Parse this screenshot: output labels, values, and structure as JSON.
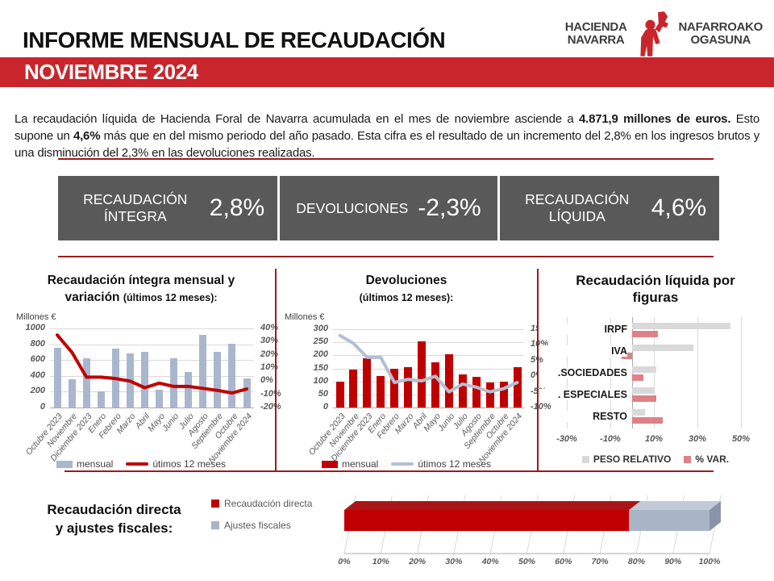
{
  "header": {
    "title": "INFORME MENSUAL DE RECAUDACIÓN",
    "banner": "NOVIEMBRE 2024",
    "logo": {
      "left_line1": "HACIENDA",
      "left_line2": "NAVARRA",
      "right_line1": "NAFARROAKO",
      "right_line2": "OGASUNA"
    }
  },
  "intro": {
    "part1": "La recaudación líquida de Hacienda Foral de Navarra acumulada en el mes de noviembre asciende a ",
    "bold1": "4.871,9 millones de euros.",
    "part2": " Esto supone un ",
    "bold2": "4,6%",
    "part3": " más que en del mismo periodo del año pasado. Esta cifra es el resultado de un incremento del 2,8% en los ingresos brutos y una disminución del 2,3% en las devoluciones realizadas."
  },
  "kpis": [
    {
      "label": "RECAUDACIÓN ÍNTEGRA",
      "value": "2,8%"
    },
    {
      "label": "DEVOLUCIONES",
      "value": "-2,3%"
    },
    {
      "label": "RECAUDACIÓN LÍQUIDA",
      "value": "4,6%"
    }
  ],
  "colors": {
    "banner_red": "#C9252C",
    "rule_red": "#9B1B1E",
    "kpi_gray": "#595959",
    "bar_blue": "#A9B7CE",
    "line_red": "#C00000",
    "bar_red": "#C00000",
    "line_gray": "#B3BFD1",
    "peso_gray": "#D9D9D9",
    "var_red": "#DE8287",
    "axis_text": "#595959",
    "grid": "#D9D9D9"
  },
  "chart_data": [
    {
      "type": "bar",
      "title_line1": "Recaudación íntegra mensual y",
      "title_line2": "variación",
      "title_sub": "(últimos 12 meses):",
      "units_label": "Millones €",
      "categories": [
        "Octubre 2023",
        "Noviembre",
        "Diciembre 2023",
        "Enero",
        "Febrero",
        "Marzo",
        "Abril",
        "Mayo",
        "Junio",
        "Julio",
        "Agosto",
        "Septiembre",
        "Octubre",
        "Noviembre 2024"
      ],
      "bar_series": {
        "name": "mensual",
        "values": [
          755,
          360,
          620,
          205,
          745,
          685,
          700,
          220,
          625,
          450,
          915,
          700,
          810,
          370
        ]
      },
      "line_series": {
        "name": "útimos 12 meses",
        "values": [
          35,
          22,
          3,
          3,
          2,
          0,
          -5,
          -1.5,
          -4,
          -4,
          -5.5,
          -7,
          -9,
          -6
        ]
      },
      "left_axis": {
        "min": 0,
        "max": 1000,
        "ticks": [
          "1000",
          "800",
          "600",
          "400",
          "200",
          "0"
        ]
      },
      "right_axis": {
        "min": -20,
        "max": 40,
        "ticks": [
          "40%",
          "30%",
          "20%",
          "10%",
          "0%",
          "-10%",
          "-20%"
        ]
      }
    },
    {
      "type": "bar",
      "title_line1": "Devoluciones",
      "title_line2": "",
      "title_sub": "(últimos 12 meses):",
      "units_label": "Millones €",
      "categories": [
        "Octubre 2023",
        "Noviembre",
        "Diciembre 2023",
        "Enero",
        "Febrero",
        "Marzo",
        "Abril",
        "Mayo",
        "Junio",
        "Julio",
        "Agosto",
        "Septiembre",
        "Octubre",
        "Noviembre 2024"
      ],
      "bar_series": {
        "name": "mensual",
        "values": [
          100,
          145,
          190,
          120,
          148,
          155,
          253,
          172,
          205,
          127,
          119,
          97,
          99,
          155
        ]
      },
      "line_series": {
        "name": "útimos 12 meses",
        "values": [
          13,
          10.5,
          6,
          6,
          -2,
          -1,
          -1.5,
          0,
          -5,
          -2.5,
          -3.5,
          -5,
          -4,
          -2
        ]
      },
      "left_axis": {
        "min": 0,
        "max": 300,
        "ticks": [
          "300",
          "250",
          "200",
          "150",
          "100",
          "50",
          "0"
        ]
      },
      "right_axis": {
        "min": -10,
        "max": 15,
        "ticks": [
          "15%",
          "10%",
          "5%",
          "0%",
          "-5%",
          "-10%"
        ]
      }
    },
    {
      "type": "bar",
      "title_line1": "Recaudación líquida por",
      "title_line2": "figuras",
      "categories": [
        "IRPF",
        "IVA",
        ".SOCIEDADES",
        ". ESPECIALES",
        "RESTO"
      ],
      "series": [
        {
          "name": "PESO RELATIVO",
          "values": [
            45,
            28,
            11,
            10,
            6
          ]
        },
        {
          "name": "% VAR.",
          "values": [
            12,
            -5,
            5,
            11,
            14
          ]
        }
      ],
      "x_ticks": [
        "-30%",
        "-10%",
        "10%",
        "30%",
        "50%"
      ],
      "x_tick_values": [
        -30,
        -10,
        10,
        30,
        50
      ]
    },
    {
      "type": "bar",
      "section_title_line1": "Recaudación  directa",
      "section_title_line2": "y ajustes  fiscales:",
      "series": [
        {
          "name": "Recaudación directa",
          "value": 78
        },
        {
          "name": "Ajustes fiscales",
          "value": 22
        }
      ],
      "x_ticks": [
        "0%",
        "10%",
        "20%",
        "30%",
        "40%",
        "50%",
        "60%",
        "70%",
        "80%",
        "90%",
        "100%"
      ]
    }
  ]
}
